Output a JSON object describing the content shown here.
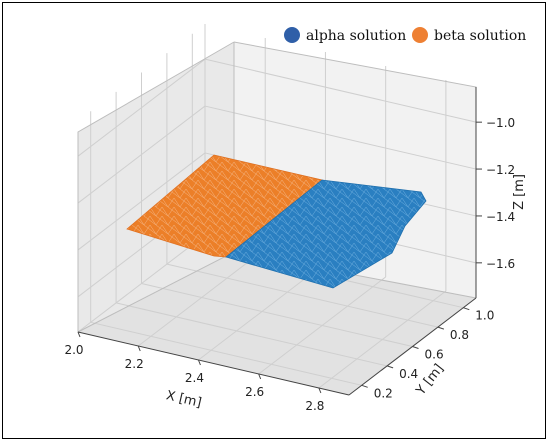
{
  "chart_data": {
    "type": "surface-3d",
    "title": "",
    "xlabel": "X [m]",
    "ylabel": "Y [m]",
    "zlabel": "Z [m]",
    "x_ticks": [
      "2.0",
      "2.2",
      "2.4",
      "2.6",
      "2.8"
    ],
    "y_ticks": [
      "0.2",
      "0.4",
      "0.6",
      "0.8",
      "1.0"
    ],
    "z_ticks": [
      "-1.0",
      "-1.2",
      "-1.4",
      "-1.6"
    ],
    "xlim": [
      2.0,
      2.9
    ],
    "ylim": [
      0.1,
      1.1
    ],
    "zlim": [
      -1.75,
      -0.85
    ],
    "grid": true,
    "legend_position": "top-right",
    "series": [
      {
        "name": "alpha solution",
        "color": "#2f5fa8",
        "surface_color": "#2a7fc1",
        "x_range": [
          2.38,
          2.86
        ],
        "y_range": [
          0.2,
          1.0
        ],
        "z_approx": -1.35
      },
      {
        "name": "beta solution",
        "color": "#ee8033",
        "surface_color": "#ec7f28",
        "x_range": [
          2.0,
          2.38
        ],
        "y_range": [
          0.2,
          1.0
        ],
        "z_approx": -1.35
      }
    ]
  }
}
